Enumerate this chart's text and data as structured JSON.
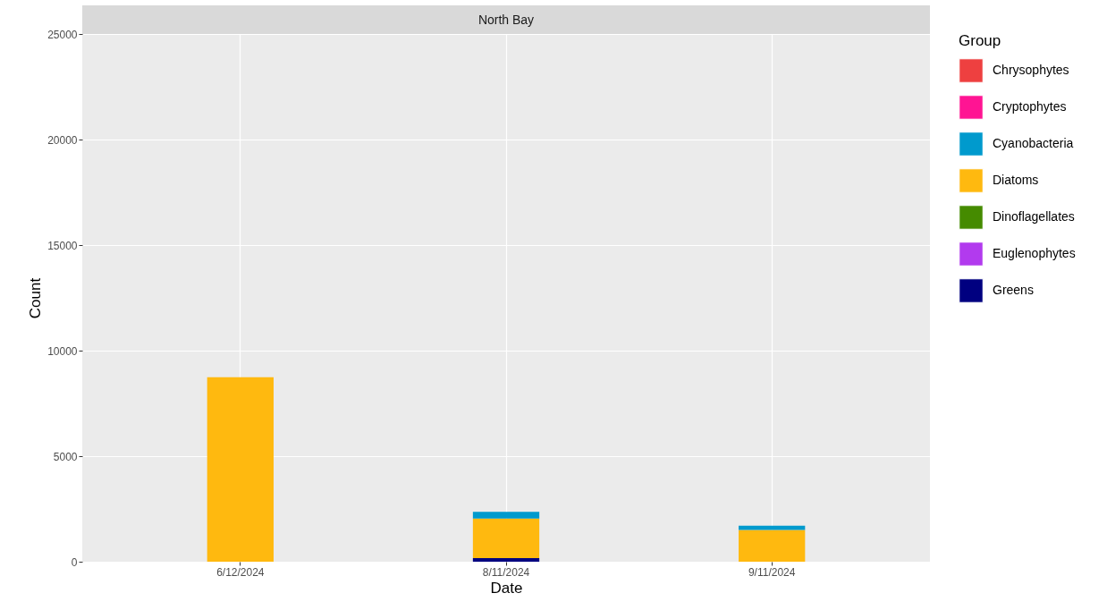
{
  "chart_data": {
    "type": "bar",
    "title": "North Bay",
    "xlabel": "Date",
    "ylabel": "Count",
    "legend_title": "Group",
    "categories": [
      "6/12/2024",
      "8/11/2024",
      "9/11/2024"
    ],
    "stacked": true,
    "series": [
      {
        "name": "Greens",
        "color": "#000080",
        "values": [
          0,
          170,
          0
        ]
      },
      {
        "name": "Euglenophytes",
        "color": "#b23aee",
        "values": [
          0,
          0,
          0
        ]
      },
      {
        "name": "Dinoflagellates",
        "color": "#458b00",
        "values": [
          0,
          0,
          0
        ]
      },
      {
        "name": "Diatoms",
        "color": "#ffb90f",
        "values": [
          8740,
          1870,
          1500
        ]
      },
      {
        "name": "Cyanobacteria",
        "color": "#009acd",
        "values": [
          0,
          320,
          210
        ]
      },
      {
        "name": "Cryptophytes",
        "color": "#ff1493",
        "values": [
          0,
          0,
          0
        ]
      },
      {
        "name": "Chrysophytes",
        "color": "#ee4040",
        "values": [
          0,
          0,
          0
        ]
      }
    ],
    "ylim": [
      0,
      25000
    ],
    "yticks": [
      0,
      5000,
      10000,
      15000,
      20000,
      25000
    ],
    "grid": true,
    "legend": "right"
  }
}
